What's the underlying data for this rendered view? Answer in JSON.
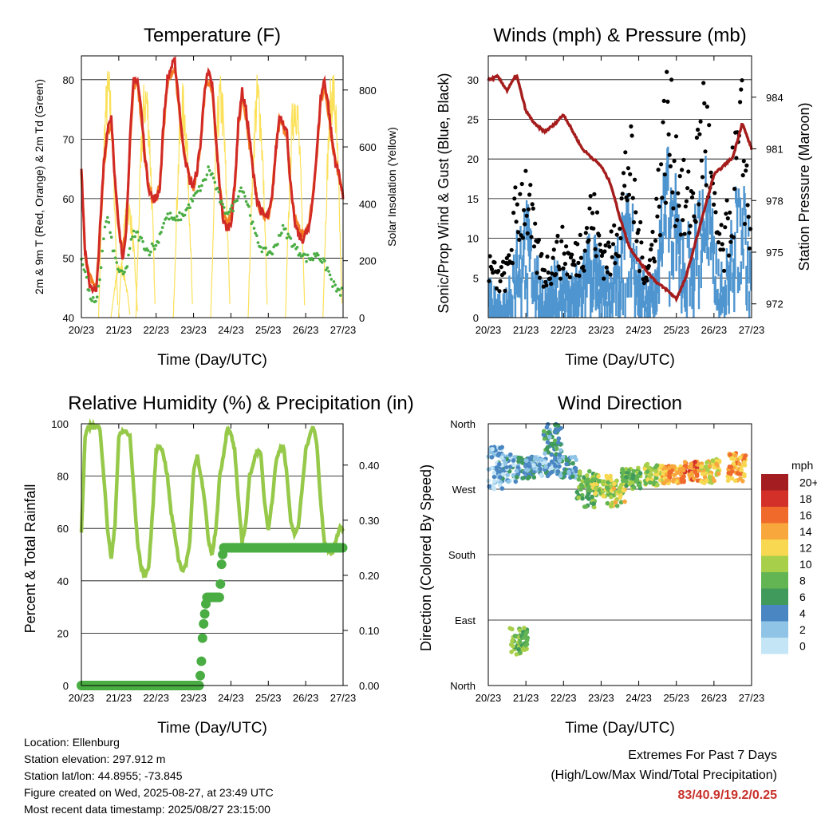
{
  "x_ticks": [
    "20/23",
    "21/23",
    "22/23",
    "23/23",
    "24/23",
    "25/23",
    "26/23",
    "27/23"
  ],
  "info": {
    "location": "Location: Ellenburg",
    "elevation": "Station elevation: 297.912 m",
    "latlon": "Station lat/lon: 44.8955; -73.845",
    "created": "Figure created on Wed, 2025-08-27, at 23:49 UTC",
    "recent": "Most recent data timestamp: 2025/08/27 23:15:00"
  },
  "extremes": {
    "title": "Extremes For Past 7 Days",
    "subtitle": "(High/Low/Max Wind/Total Precipitation)",
    "values": "83/40.9/19.2/0.25"
  },
  "colors": {
    "red": "#d12a26",
    "orange": "#f57e23",
    "green": "#4aad43",
    "yellow": "#fbe15a",
    "maroon": "#a51c1c",
    "black": "#000000",
    "blue": "#4f95cf",
    "lightgreen": "#96c94a"
  },
  "chart_data": [
    {
      "type": "line",
      "title": "Temperature (F)",
      "xlabel": "Time (Day/UTC)",
      "ylabel": "2m & 9m T (Red, Orange) & 2m Td (Green)",
      "y2label": "Solar Insolation (Yellow)",
      "ylim": [
        40,
        84
      ],
      "y_ticks": [
        40,
        50,
        60,
        70,
        80
      ],
      "y2lim": [
        0,
        920
      ],
      "y2_ticks": [
        0,
        200,
        400,
        600,
        800
      ],
      "x": [
        0,
        0.1,
        0.2,
        0.3,
        0.4,
        0.5,
        0.6,
        0.7,
        0.8,
        0.9,
        1,
        1.1,
        1.2,
        1.3,
        1.4,
        1.5,
        1.6,
        1.7,
        1.8,
        1.9,
        2,
        2.1,
        2.2,
        2.3,
        2.4,
        2.5,
        2.6,
        2.7,
        2.8,
        2.9,
        3,
        3.1,
        3.2,
        3.3,
        3.4,
        3.5,
        3.6,
        3.7,
        3.8,
        3.9,
        4,
        4.1,
        4.2,
        4.3,
        4.4,
        4.5,
        4.6,
        4.7,
        4.8,
        4.9,
        5,
        5.1,
        5.2,
        5.3,
        5.4,
        5.5,
        5.6,
        5.7,
        5.8,
        5.9,
        6,
        6.1,
        6.2,
        6.3,
        6.4,
        6.5,
        6.6,
        6.7,
        6.8,
        6.9,
        7
      ],
      "series": [
        {
          "name": "2m T",
          "color": "#d12a26",
          "values": [
            65,
            51,
            46,
            45,
            44,
            55,
            66,
            72,
            74,
            63,
            55,
            50,
            55,
            70,
            80,
            80,
            75,
            67,
            62,
            60,
            60,
            62,
            73,
            80,
            82,
            83,
            77,
            70,
            66,
            63,
            62,
            65,
            70,
            79,
            81,
            79,
            70,
            62,
            56,
            55,
            56,
            62,
            73,
            78,
            75,
            70,
            64,
            60,
            58,
            57,
            57,
            60,
            68,
            74,
            73,
            71,
            62,
            56,
            54,
            53,
            54,
            55,
            61,
            68,
            77,
            80,
            76,
            70,
            66,
            64,
            60
          ]
        },
        {
          "name": "9m T",
          "color": "#f57e23",
          "values": [
            64,
            51,
            47,
            46,
            45,
            55,
            65,
            71,
            73,
            63,
            55,
            51,
            55,
            69,
            79,
            79,
            74,
            67,
            62,
            60,
            60,
            62,
            72,
            79,
            81,
            82,
            76,
            70,
            66,
            63,
            62,
            65,
            70,
            78,
            80,
            78,
            70,
            62,
            57,
            56,
            57,
            62,
            72,
            77,
            74,
            69,
            64,
            60,
            58,
            57,
            57,
            60,
            68,
            73,
            72,
            70,
            62,
            57,
            55,
            54,
            55,
            56,
            61,
            68,
            76,
            79,
            75,
            70,
            66,
            64,
            61
          ]
        },
        {
          "name": "2m Td",
          "color": "#4aad43",
          "values": [
            50,
            48,
            44,
            43,
            42,
            47,
            54,
            57,
            53,
            50,
            48,
            47,
            48,
            52,
            54,
            54,
            53,
            52,
            51,
            52,
            52,
            54,
            56,
            57,
            57,
            56,
            57,
            57,
            58,
            59,
            60,
            61,
            62,
            63,
            65,
            64,
            62,
            60,
            58,
            58,
            58,
            59,
            61,
            62,
            60,
            58,
            55,
            53,
            52,
            51,
            51,
            51,
            52,
            54,
            55,
            54,
            53,
            52,
            51,
            51,
            50,
            50,
            50,
            51,
            50,
            49,
            48,
            46,
            45,
            44,
            45
          ]
        },
        {
          "name": "Solar",
          "color": "#fbe15a",
          "axis": "right",
          "peaks": [
            [
              0.72,
              890
            ],
            [
              1.05,
              200
            ],
            [
              1.25,
              430
            ],
            [
              1.72,
              870
            ],
            [
              2.72,
              830
            ],
            [
              3.72,
              860
            ],
            [
              4.72,
              870
            ],
            [
              5.72,
              860
            ],
            [
              6.72,
              900
            ]
          ]
        }
      ]
    },
    {
      "type": "scatter",
      "title": "Winds (mph) & Pressure (mb)",
      "xlabel": "Time (Day/UTC)",
      "ylabel": "Sonic/Prop Wind & Gust (Blue, Black)",
      "y2label": "Station Pressure (Maroon)",
      "ylim": [
        0,
        33
      ],
      "y_ticks": [
        0,
        5,
        10,
        15,
        20,
        25,
        30
      ],
      "y2lim": [
        971.2,
        986.4
      ],
      "y2_ticks": [
        972,
        975,
        978,
        981,
        984
      ],
      "x": [
        0,
        0.25,
        0.5,
        0.75,
        1,
        1.25,
        1.5,
        1.75,
        2,
        2.25,
        2.5,
        2.75,
        3,
        3.25,
        3.5,
        3.75,
        4,
        4.25,
        4.5,
        4.75,
        5,
        5.25,
        5.5,
        5.75,
        6,
        6.25,
        6.5,
        6.75,
        7
      ],
      "series": [
        {
          "name": "Wind",
          "color": "#4f95cf",
          "values": [
            4,
            2,
            3,
            9,
            11,
            6,
            3,
            5,
            5,
            4,
            6,
            9,
            5,
            4,
            8,
            12,
            6,
            3,
            9,
            15,
            12,
            8,
            10,
            16,
            8,
            4,
            10,
            14,
            6
          ]
        },
        {
          "name": "Gust",
          "color": "#000000",
          "values": [
            7,
            5,
            6,
            14,
            17,
            9,
            6,
            8,
            9,
            7,
            10,
            14,
            9,
            8,
            14,
            21,
            10,
            6,
            15,
            26,
            20,
            14,
            17,
            27,
            13,
            8,
            17,
            24,
            10
          ]
        },
        {
          "name": "Pressure",
          "color": "#a51c1c",
          "axis": "right",
          "values": [
            985.0,
            985.2,
            984.4,
            985.3,
            983.2,
            982.4,
            982.0,
            982.4,
            983.0,
            982.0,
            981.0,
            980.5,
            980.0,
            979.0,
            977.0,
            975.3,
            974.5,
            973.8,
            973.2,
            972.8,
            972.3,
            973.5,
            975.5,
            977.5,
            979.5,
            980.0,
            980.5,
            982.5,
            981.0
          ]
        }
      ]
    },
    {
      "type": "line",
      "title": "Relative Humidity (%) & Precipitation (in)",
      "xlabel": "Time (Day/UTC)",
      "ylabel": "Percent & Total Rainfall",
      "ylim": [
        0,
        100
      ],
      "y_ticks": [
        0,
        20,
        40,
        60,
        80,
        100
      ],
      "y2lim": [
        0,
        0.475
      ],
      "y2_ticks": [
        0.0,
        0.1,
        0.2,
        0.3,
        0.4
      ],
      "x": [
        0,
        0.1,
        0.2,
        0.3,
        0.4,
        0.5,
        0.6,
        0.7,
        0.8,
        0.9,
        1,
        1.1,
        1.2,
        1.3,
        1.4,
        1.5,
        1.6,
        1.7,
        1.8,
        1.9,
        2,
        2.1,
        2.2,
        2.3,
        2.4,
        2.5,
        2.6,
        2.7,
        2.8,
        2.9,
        3,
        3.1,
        3.2,
        3.3,
        3.4,
        3.5,
        3.6,
        3.7,
        3.8,
        3.9,
        4,
        4.1,
        4.2,
        4.3,
        4.4,
        4.5,
        4.6,
        4.7,
        4.8,
        4.9,
        5,
        5.1,
        5.2,
        5.3,
        5.4,
        5.5,
        5.6,
        5.7,
        5.8,
        5.9,
        6,
        6.1,
        6.2,
        6.3,
        6.4,
        6.5,
        6.6,
        6.7,
        6.8,
        6.9,
        7
      ],
      "series": [
        {
          "name": "RH",
          "color": "#96c94a",
          "values": [
            58,
            95,
            99,
            99,
            99,
            98,
            80,
            60,
            48,
            62,
            95,
            97,
            97,
            95,
            75,
            55,
            45,
            42,
            45,
            65,
            90,
            92,
            88,
            80,
            66,
            58,
            48,
            44,
            46,
            55,
            82,
            88,
            80,
            70,
            55,
            50,
            60,
            80,
            88,
            98,
            96,
            90,
            70,
            55,
            62,
            80,
            85,
            90,
            88,
            70,
            60,
            70,
            85,
            90,
            92,
            80,
            62,
            58,
            60,
            75,
            90,
            95,
            99,
            92,
            70,
            55,
            52,
            50,
            55,
            60,
            60
          ]
        },
        {
          "name": "Precip",
          "color": "#4aad43",
          "axis": "right",
          "steps": [
            [
              0,
              0
            ],
            [
              3.15,
              0
            ],
            [
              3.2,
              0.03
            ],
            [
              3.25,
              0.1
            ],
            [
              3.3,
              0.13
            ],
            [
              3.35,
              0.16
            ],
            [
              3.7,
              0.16
            ],
            [
              3.75,
              0.22
            ],
            [
              3.8,
              0.25
            ],
            [
              7,
              0.25
            ]
          ]
        }
      ]
    },
    {
      "type": "scatter",
      "title": "Wind Direction",
      "xlabel": "Time (Day/UTC)",
      "ylabel": "Direction (Colored By Speed)",
      "y_tick_labels": [
        "North",
        "East",
        "South",
        "West",
        "North"
      ],
      "ylim": [
        0,
        360
      ],
      "legend_title": "mph",
      "legend_labels": [
        "0",
        "2",
        "4",
        "6",
        "8",
        "10",
        "12",
        "14",
        "16",
        "18",
        "20+"
      ],
      "legend_colors": [
        "#c4e5f5",
        "#8fc4e6",
        "#4a86c2",
        "#3f9a5c",
        "#63b453",
        "#a8cf4a",
        "#f7d850",
        "#f8a73d",
        "#ef6a2b",
        "#d3302a",
        "#a41d20"
      ],
      "clusters": [
        [
          0.5,
          300,
          20,
          3
        ],
        [
          1.0,
          300,
          15,
          4
        ],
        [
          1.6,
          300,
          12,
          3
        ],
        [
          2.1,
          300,
          15,
          4
        ],
        [
          2.6,
          270,
          25,
          8
        ],
        [
          3.0,
          275,
          15,
          10
        ],
        [
          3.4,
          265,
          20,
          11
        ],
        [
          3.8,
          285,
          15,
          8
        ],
        [
          4.4,
          290,
          15,
          10
        ],
        [
          4.9,
          290,
          12,
          14
        ],
        [
          5.4,
          295,
          15,
          16
        ],
        [
          5.9,
          295,
          18,
          12
        ],
        [
          6.6,
          300,
          20,
          14
        ],
        [
          0.8,
          60,
          20,
          8
        ],
        [
          1.7,
          340,
          25,
          5
        ],
        [
          0.2,
          300,
          30,
          2
        ],
        [
          1.2,
          305,
          10,
          3
        ]
      ]
    }
  ]
}
